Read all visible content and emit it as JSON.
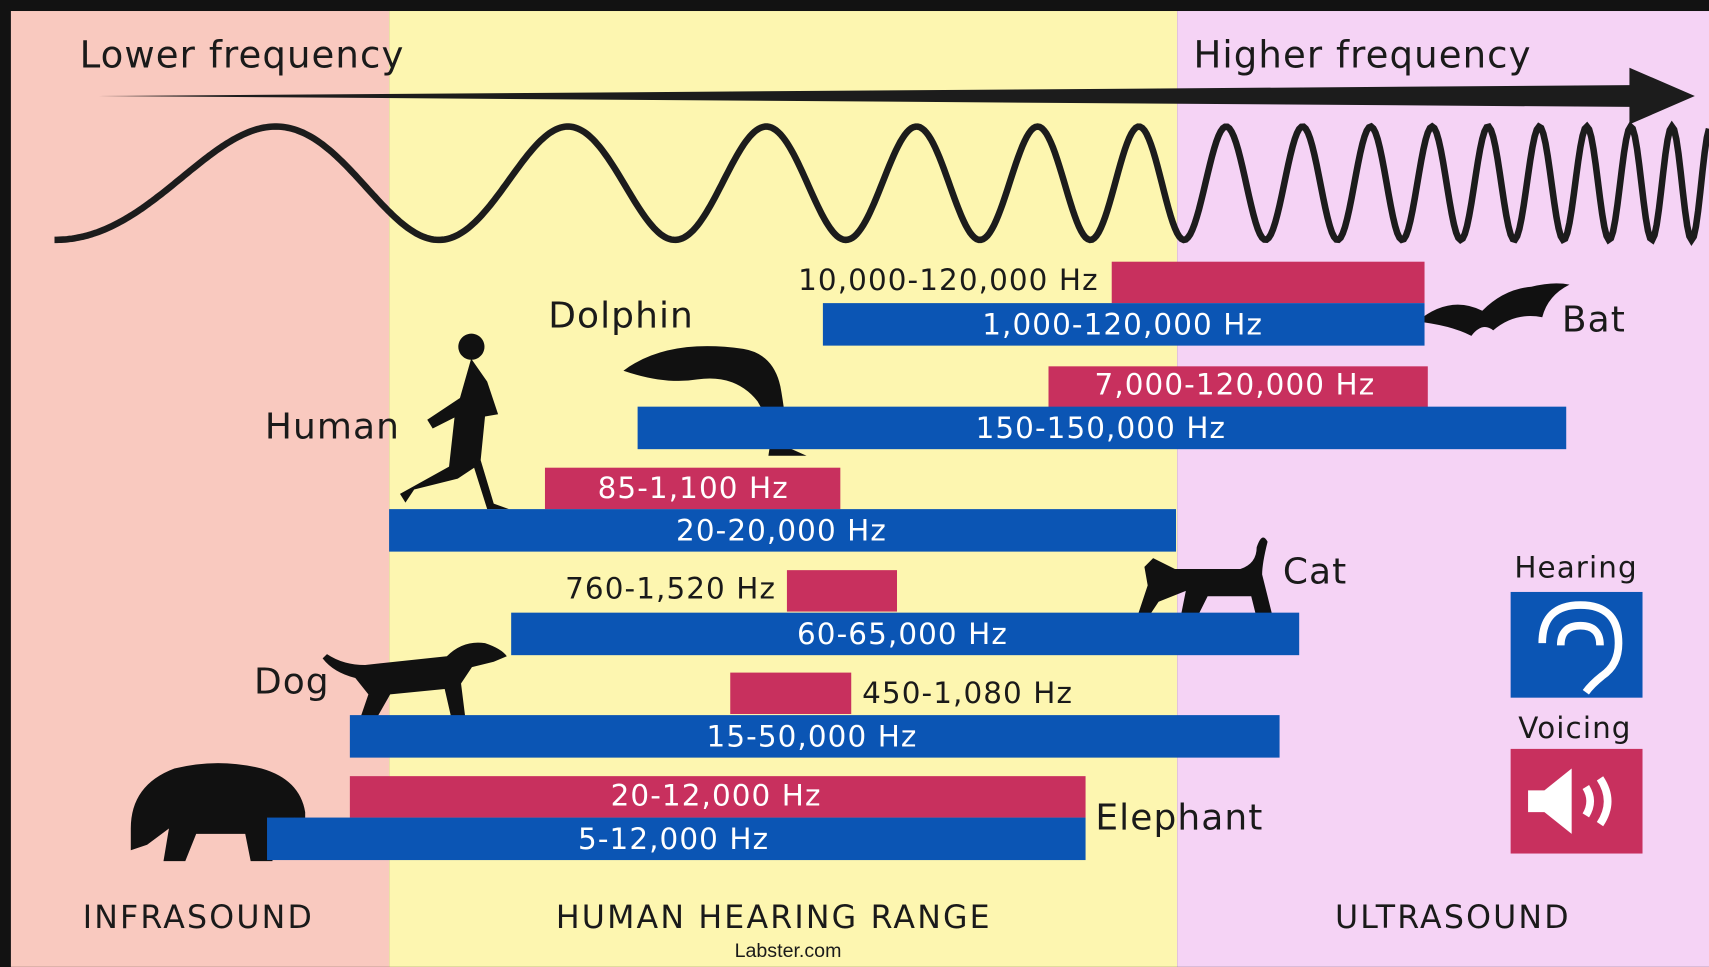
{
  "header": {
    "left": "Lower frequency",
    "right": "Higher frequency"
  },
  "animals": [
    {
      "name": "Bat",
      "voicing": "10,000-120,000 Hz",
      "hearing": "1,000-120,000 Hz"
    },
    {
      "name": "Dolphin",
      "voicing": "7,000-120,000 Hz",
      "hearing": "150-150,000 Hz"
    },
    {
      "name": "Human",
      "voicing": "85-1,100 Hz",
      "hearing": "20-20,000 Hz"
    },
    {
      "name": "Cat",
      "voicing": "760-1,520 Hz",
      "hearing": "60-65,000 Hz"
    },
    {
      "name": "Dog",
      "voicing": "450-1,080 Hz",
      "hearing": "15-50,000 Hz"
    },
    {
      "name": "Elephant",
      "voicing": "20-12,000 Hz",
      "hearing": "5-12,000 Hz"
    }
  ],
  "legend": {
    "hearing": "Hearing",
    "voicing": "Voicing"
  },
  "regions": [
    "INFRASOUND",
    "HUMAN HEARING RANGE",
    "ULTRASOUND"
  ],
  "footer": "Labster.com"
}
